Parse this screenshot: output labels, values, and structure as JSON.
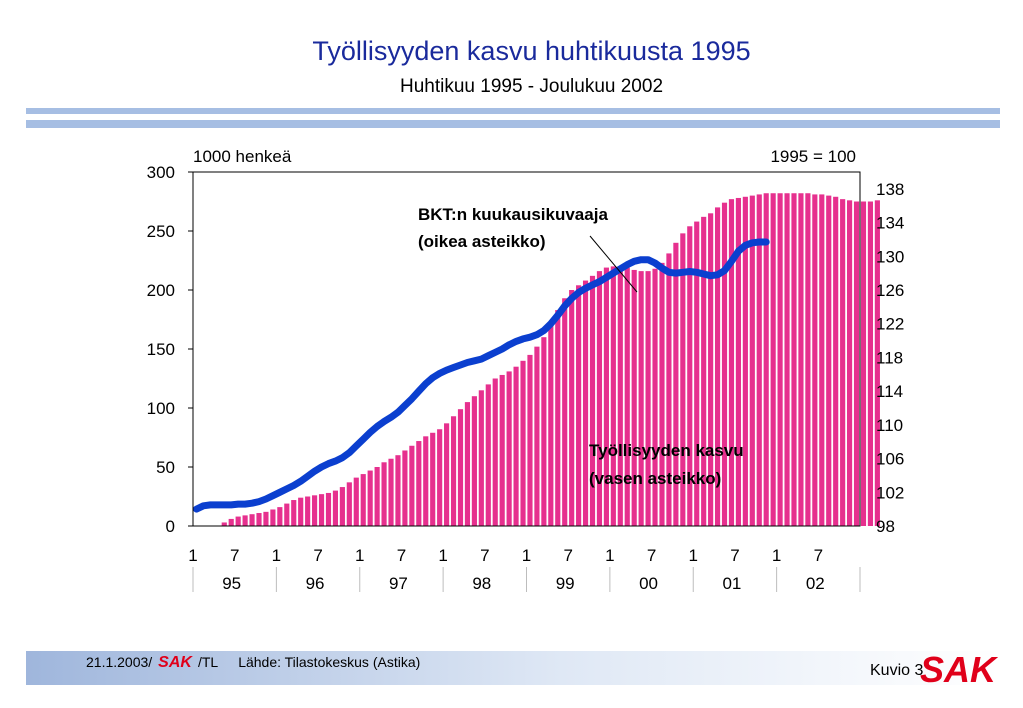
{
  "slide": {
    "title": "Työllisyyden kasvu huhtikuusta 1995",
    "subtitle": "Huhtikuu 1995 - Joulukuu 2002"
  },
  "footer": {
    "date": "21.1.2003/",
    "brand": "SAK",
    "author": "/TL",
    "source": "Lähde: Tilastokeskus (Astika)",
    "figure": "Kuvio 3",
    "logo_text": "SAK"
  },
  "colors": {
    "title": "#1a2a9c",
    "bars": "#e6308e",
    "line": "#0b3fcf",
    "rule": "#a6bee3"
  },
  "chart_data": {
    "type": "bar",
    "left_axis": {
      "label": "1000 henkeä",
      "ylim": [
        0,
        300
      ],
      "ticks": [
        0,
        50,
        100,
        150,
        200,
        250,
        300
      ]
    },
    "right_axis": {
      "label": "1995 = 100",
      "ylim": [
        98,
        140
      ],
      "ticks": [
        98,
        102,
        106,
        110,
        114,
        118,
        122,
        126,
        130,
        134,
        138
      ]
    },
    "month_ticks": [
      "1",
      "7",
      "1",
      "7",
      "1",
      "7",
      "1",
      "7",
      "1",
      "7",
      "1",
      "7",
      "1",
      "7",
      "1",
      "7"
    ],
    "years": [
      "95",
      "96",
      "97",
      "98",
      "99",
      "00",
      "01",
      "02"
    ],
    "grid": false,
    "series": [
      {
        "name": "Työllisyyden kasvu",
        "annotation": [
          "Työllisyyden kasvu",
          "(vasen asteikko)"
        ],
        "axis": "left",
        "type": "bar",
        "start": "1995-04",
        "values": [
          0,
          3,
          6,
          8,
          9,
          10,
          11,
          12,
          14,
          16,
          19,
          22,
          24,
          25,
          26,
          27,
          28,
          30,
          33,
          37,
          41,
          44,
          47,
          50,
          54,
          57,
          60,
          64,
          68,
          72,
          76,
          79,
          82,
          87,
          93,
          99,
          105,
          110,
          115,
          120,
          125,
          128,
          131,
          135,
          140,
          145,
          152,
          160,
          172,
          183,
          193,
          200,
          204,
          208,
          212,
          216,
          219,
          220,
          220,
          219,
          217,
          216,
          216,
          218,
          223,
          231,
          240,
          248,
          254,
          258,
          262,
          265,
          270,
          274,
          277,
          278,
          279,
          280,
          281,
          282,
          282,
          282,
          282,
          282,
          282,
          282,
          281,
          281,
          280,
          279,
          277,
          276,
          275,
          275,
          275,
          276
        ]
      },
      {
        "name": "BKT:n kuukausikuvaaja",
        "annotation": [
          "BKT:n kuukausikuvaaja",
          "(oikea asteikko)"
        ],
        "axis": "right",
        "type": "line",
        "start": "1995-01",
        "values": [
          100.0,
          100.4,
          100.5,
          100.5,
          100.5,
          100.5,
          100.6,
          100.6,
          100.7,
          100.9,
          101.2,
          101.6,
          102.0,
          102.4,
          102.8,
          103.3,
          103.9,
          104.5,
          105.0,
          105.4,
          105.7,
          106.1,
          106.7,
          107.5,
          108.3,
          109.1,
          109.8,
          110.4,
          110.9,
          111.5,
          112.3,
          113.1,
          114.0,
          114.9,
          115.6,
          116.1,
          116.5,
          116.8,
          117.1,
          117.4,
          117.6,
          117.8,
          118.2,
          118.6,
          119.0,
          119.5,
          119.9,
          120.2,
          120.4,
          120.7,
          121.2,
          122.0,
          123.0,
          124.1,
          125.0,
          125.7,
          126.2,
          126.6,
          127.0,
          127.5,
          128.0,
          128.5,
          129.0,
          129.4,
          129.6,
          129.6,
          129.2,
          128.6,
          128.1,
          128.0,
          128.1,
          128.2,
          128.1,
          127.9,
          127.7,
          127.8,
          128.3,
          129.4,
          130.6,
          131.3,
          131.6,
          131.7,
          131.7
        ]
      }
    ]
  }
}
